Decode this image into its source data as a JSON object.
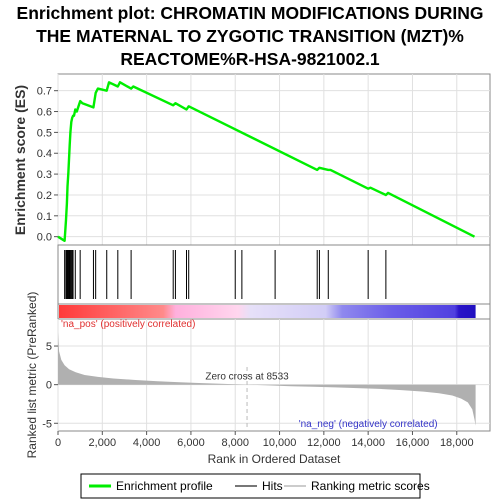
{
  "title_lines": [
    "Enrichment plot: CHROMATIN MODIFICATIONS DURING",
    "THE MATERNAL TO ZYGOTIC TRANSITION (MZT)%",
    "REACTOME%R-HSA-9821002.1"
  ],
  "colors": {
    "es_line": "#00ee00",
    "hits": "#000000",
    "metric_fill": "#b0b0b0",
    "pos_label": "#e03030",
    "neg_label": "#3535c8",
    "zero_line": "#bbbbbb",
    "grid": "#e0e0e0"
  },
  "chart_data": [
    {
      "type": "line",
      "name": "enrichment-profile",
      "ylabel": "Enrichment score (ES)",
      "xlim": [
        0,
        19500
      ],
      "ylim": [
        -0.04,
        0.78
      ],
      "yticks": [
        0.0,
        0.1,
        0.2,
        0.3,
        0.4,
        0.5,
        0.6,
        0.7
      ],
      "ytick_labels": [
        "0.0",
        "0.1",
        "0.2",
        "0.3",
        "0.4",
        "0.5",
        "0.6",
        "0.7"
      ],
      "grid": true,
      "x": [
        0,
        300,
        360,
        400,
        430,
        470,
        500,
        530,
        560,
        600,
        640,
        680,
        720,
        780,
        850,
        1000,
        1100,
        1600,
        1700,
        1800,
        2200,
        2300,
        2700,
        2800,
        3300,
        3400,
        5200,
        5300,
        5800,
        5900,
        11700,
        11800,
        12200,
        12300,
        14000,
        14100,
        14800,
        14900,
        18800
      ],
      "y": [
        0.0,
        -0.02,
        0.08,
        0.16,
        0.24,
        0.31,
        0.38,
        0.44,
        0.5,
        0.55,
        0.57,
        0.58,
        0.58,
        0.61,
        0.6,
        0.65,
        0.64,
        0.62,
        0.69,
        0.71,
        0.7,
        0.74,
        0.72,
        0.74,
        0.71,
        0.72,
        0.63,
        0.64,
        0.61,
        0.625,
        0.32,
        0.33,
        0.32,
        0.32,
        0.23,
        0.235,
        0.2,
        0.21,
        0.0
      ]
    },
    {
      "type": "hits",
      "name": "hits",
      "hit_ranks": [
        300,
        360,
        400,
        430,
        470,
        500,
        530,
        560,
        600,
        640,
        680,
        780,
        1000,
        1600,
        1700,
        2200,
        2700,
        3300,
        5200,
        5300,
        5800,
        5900,
        8000,
        8300,
        9800,
        11700,
        11800,
        12200,
        14000,
        14800
      ]
    },
    {
      "type": "area",
      "name": "ranked-list-metric",
      "ylabel": "Ranked list metric (PreRanked)",
      "xlabel": "Rank in Ordered Dataset",
      "xlim": [
        0,
        19500
      ],
      "ylim": [
        -6,
        8.5
      ],
      "yticks": [
        -5,
        0,
        5
      ],
      "ytick_labels": [
        "-5",
        "0",
        "5"
      ],
      "xticks": [
        0,
        2000,
        4000,
        6000,
        8000,
        10000,
        12000,
        14000,
        16000,
        18000
      ],
      "xtick_labels": [
        "0",
        "2,000",
        "4,000",
        "6,000",
        "8,000",
        "10,000",
        "12,000",
        "14,000",
        "16,000",
        "18,000"
      ],
      "x": [
        0,
        50,
        150,
        300,
        500,
        800,
        1200,
        1800,
        2500,
        3500,
        4500,
        5500,
        6500,
        7500,
        8533,
        9500,
        10500,
        11500,
        12500,
        13500,
        14500,
        15500,
        16500,
        17200,
        17800,
        18200,
        18500,
        18700,
        18800,
        18850
      ],
      "values": [
        6.8,
        4.3,
        3.2,
        2.5,
        2.0,
        1.6,
        1.25,
        1.0,
        0.8,
        0.6,
        0.45,
        0.32,
        0.2,
        0.1,
        0.0,
        -0.1,
        -0.2,
        -0.28,
        -0.36,
        -0.45,
        -0.55,
        -0.7,
        -0.9,
        -1.1,
        -1.4,
        -1.8,
        -2.3,
        -3.2,
        -4.5,
        -5.3
      ],
      "zero_cross": 8533,
      "zero_cross_label": "Zero cross at 8533",
      "pos_label": "'na_pos' (positively correlated)",
      "neg_label": "'na_neg' (negatively correlated)"
    }
  ],
  "legend": {
    "items": [
      {
        "label": "Enrichment profile",
        "kind": "line",
        "color": "#00ee00"
      },
      {
        "label": "Hits",
        "kind": "line",
        "color": "#777777"
      },
      {
        "label": "Ranking metric scores",
        "kind": "line",
        "color": "#cccccc"
      }
    ]
  }
}
